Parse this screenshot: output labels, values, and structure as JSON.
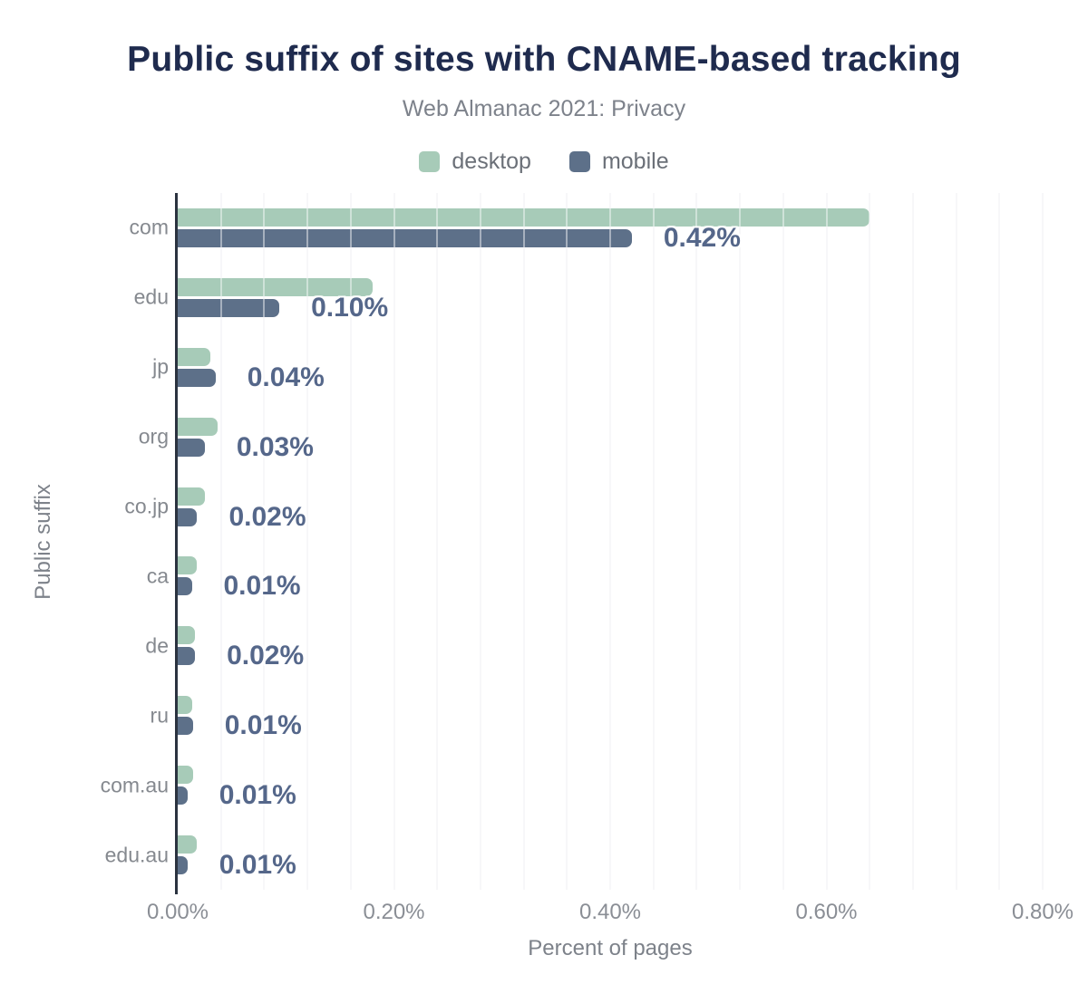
{
  "chart_data": {
    "type": "bar",
    "orientation": "horizontal",
    "title": "Public suffix of sites with CNAME-based tracking",
    "subtitle": "Web Almanac 2021: Privacy",
    "xlabel": "Percent of pages",
    "ylabel": "Public suffix",
    "categories": [
      "com",
      "edu",
      "jp",
      "org",
      "co.jp",
      "ca",
      "de",
      "ru",
      "com.au",
      "edu.au"
    ],
    "series": [
      {
        "name": "desktop",
        "color": "#a7cbb8",
        "values": [
          0.64,
          0.18,
          0.03,
          0.037,
          0.025,
          0.018,
          0.016,
          0.013,
          0.014,
          0.018
        ]
      },
      {
        "name": "mobile",
        "color": "#5d7089",
        "values": [
          0.42,
          0.094,
          0.035,
          0.025,
          0.018,
          0.013,
          0.016,
          0.014,
          0.009,
          0.009
        ]
      }
    ],
    "data_labels": [
      "0.42%",
      "0.10%",
      "0.04%",
      "0.03%",
      "0.02%",
      "0.01%",
      "0.02%",
      "0.01%",
      "0.01%",
      "0.01%"
    ],
    "data_label_series": "mobile",
    "x_ticks": [
      {
        "label": "0.00%",
        "value": 0.0
      },
      {
        "label": "0.20%",
        "value": 0.2
      },
      {
        "label": "0.40%",
        "value": 0.4
      },
      {
        "label": "0.60%",
        "value": 0.6
      },
      {
        "label": "0.80%",
        "value": 0.8
      }
    ],
    "xlim": [
      0,
      0.8
    ],
    "grid_step": 0.04,
    "grid": true,
    "legend_position": "top"
  },
  "theme": {
    "background": "#ffffff",
    "title_color": "#1f2b4e",
    "subtitle_color": "#7d828b",
    "legend_text_color": "#6b7078",
    "category_label_color": "#85898f",
    "tick_label_color": "#8a8e95",
    "axis_title_color": "#7d828a",
    "value_label_color": "#55678a",
    "gridline_color": "#f1f1f4",
    "axis_line_color": "#2b3340",
    "desktop_color": "#a7cbb8",
    "mobile_color": "#5d7089"
  }
}
